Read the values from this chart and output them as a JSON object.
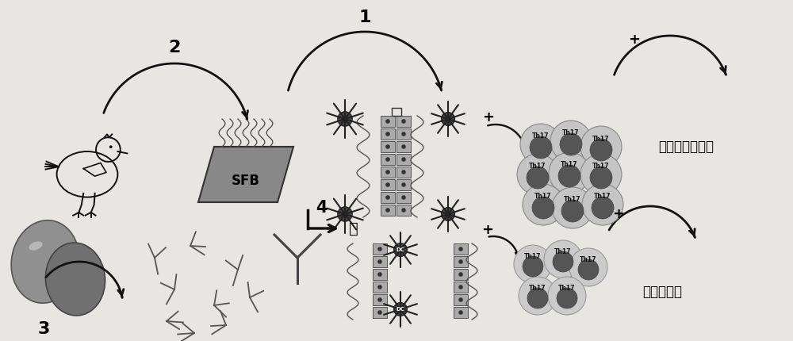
{
  "bg_color": "#e8e6e3",
  "label_1": "1",
  "label_2": "2",
  "label_3": "3",
  "label_4": "4",
  "arrow_4_text": "肠",
  "text_autoimmune": "自身免疫特应性",
  "text_tolerance": "免疫耐受性",
  "text_sfb": "SFB",
  "text_th17": "Th17",
  "text_dc": "DC",
  "plus_sign": "+",
  "cell_light": "#c8c8c8",
  "cell_dark": "#555555",
  "wall_fill": "#b0b0b0",
  "arrow_col": "#111111",
  "sfb_fill": "#888888"
}
